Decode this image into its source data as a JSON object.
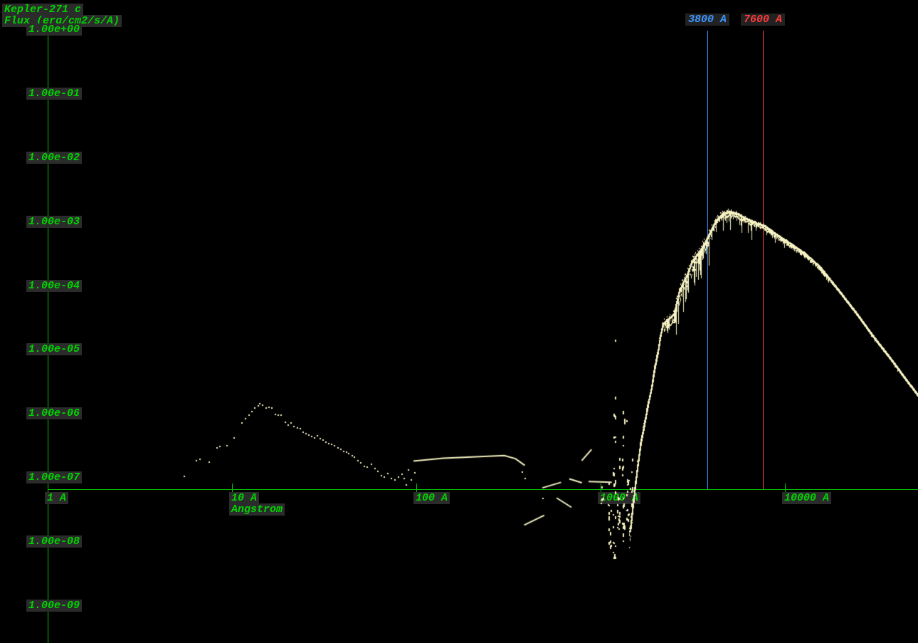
{
  "header": {
    "object_name": "Kepler-271 c",
    "flux_label": "Flux (erg/cm2/s/A)"
  },
  "chart_data": {
    "type": "scatter",
    "title": "Kepler-271 c",
    "xlabel": "Angstrom",
    "ylabel": "Flux (erg/cm2/s/A)",
    "x_scale": "log",
    "y_scale": "log",
    "xlim": [
      1,
      56000
    ],
    "ylim": [
      1e-09,
      1
    ],
    "grid": false,
    "legend": "none",
    "point_color": "#f6f2c2",
    "axis_color": "#00c400",
    "text_color": "#00d400",
    "label_bg": "#2b2b2b",
    "x_ticks": [
      {
        "value": 1,
        "label": "1 A"
      },
      {
        "value": 10,
        "label": "10 A",
        "sub": "Angstrom"
      },
      {
        "value": 100,
        "label": "100 A"
      },
      {
        "value": 1000,
        "label": "1000 A"
      },
      {
        "value": 10000,
        "label": "10000 A"
      }
    ],
    "y_ticks": [
      {
        "exp": 0,
        "label": "1.00e+00"
      },
      {
        "exp": -1,
        "label": "1.00e-01"
      },
      {
        "exp": -2,
        "label": "1.00e-02"
      },
      {
        "exp": -3,
        "label": "1.00e-03"
      },
      {
        "exp": -4,
        "label": "1.00e-04"
      },
      {
        "exp": -5,
        "label": "1.00e-05"
      },
      {
        "exp": -6,
        "label": "1.00e-06"
      },
      {
        "exp": -7,
        "label": "1.00e-07"
      },
      {
        "exp": -8,
        "label": "1.00e-08"
      },
      {
        "exp": -9,
        "label": "1.00e-09"
      }
    ],
    "markers": [
      {
        "wavelength": 3800,
        "label": "3800 A",
        "color": "#3c96ff"
      },
      {
        "wavelength": 7600,
        "label": "7600 A",
        "color": "#ff3a3a"
      }
    ],
    "series": [
      {
        "name": "soft-xray-dotted-bump",
        "style": "dots",
        "points": [
          [
            5.5,
            1.6e-07
          ],
          [
            6.4,
            2.8e-07
          ],
          [
            6.7,
            2.9e-07
          ],
          [
            7.5,
            2.65e-07
          ],
          [
            8.3,
            4.4e-07
          ],
          [
            8.6,
            4.7e-07
          ],
          [
            9.4,
            4.8e-07
          ],
          [
            10.3,
            6.3e-07
          ],
          [
            11.3,
            1.08e-06
          ],
          [
            11.8,
            1.26e-06
          ],
          [
            12.4,
            1.44e-06
          ],
          [
            12.8,
            1.64e-06
          ],
          [
            13.3,
            1.87e-06
          ],
          [
            13.9,
            2e-06
          ],
          [
            14.2,
            2.17e-06
          ],
          [
            14.7,
            2.07e-06
          ],
          [
            15.3,
            1.87e-06
          ],
          [
            15.9,
            1.92e-06
          ],
          [
            16.5,
            1.87e-06
          ],
          [
            17.2,
            1.48e-06
          ],
          [
            17.9,
            1.44e-06
          ],
          [
            18.5,
            1.44e-06
          ],
          [
            19.4,
            1.11e-06
          ],
          [
            20.2,
            1e-06
          ],
          [
            21.0,
            1.08e-06
          ],
          [
            21.7,
            9.5e-07
          ],
          [
            22.7,
            9e-07
          ],
          [
            23.5,
            8.8e-07
          ],
          [
            24.4,
            7.7e-07
          ],
          [
            25.3,
            7.4e-07
          ],
          [
            26.1,
            7e-07
          ],
          [
            27.1,
            6.6e-07
          ],
          [
            28.0,
            6.4e-07
          ],
          [
            29.0,
            6.8e-07
          ],
          [
            30.0,
            6.1e-07
          ],
          [
            31.2,
            5.8e-07
          ],
          [
            32.3,
            5.5e-07
          ],
          [
            33.6,
            5.1e-07
          ],
          [
            34.8,
            5e-07
          ],
          [
            36.0,
            4.8e-07
          ],
          [
            37.7,
            4.4e-07
          ],
          [
            38.8,
            4.2e-07
          ],
          [
            40.3,
            3.9e-07
          ],
          [
            41.9,
            3.8e-07
          ],
          [
            43.1,
            3.6e-07
          ],
          [
            45.0,
            3.3e-07
          ],
          [
            46.3,
            3.2e-07
          ],
          [
            48.3,
            2.8e-07
          ],
          [
            50.1,
            2.6e-07
          ],
          [
            52.3,
            2.3e-07
          ],
          [
            54.2,
            2.2e-07
          ],
          [
            57.0,
            2.45e-07
          ],
          [
            59.5,
            2.1e-07
          ],
          [
            61.6,
            1.9e-07
          ],
          [
            64.5,
            1.63e-07
          ],
          [
            66.9,
            1.55e-07
          ],
          [
            70.0,
            1.76e-07
          ],
          [
            73.2,
            1.48e-07
          ],
          [
            76.4,
            1.39e-07
          ],
          [
            79.8,
            1.55e-07
          ],
          [
            83.7,
            1.71e-07
          ],
          [
            85.9,
            1.48e-07
          ],
          [
            88.4,
            1.18e-07
          ],
          [
            90.8,
            2e-07
          ],
          [
            94.1,
            1.39e-07
          ],
          [
            98.3,
            1.8e-07
          ]
        ]
      },
      {
        "name": "euv-continuum",
        "style": "line",
        "points": [
          [
            96.5,
            2.75e-07
          ],
          [
            140,
            3.05e-07
          ],
          [
            200,
            3.2e-07
          ],
          [
            300,
            3.35e-07
          ],
          [
            345,
            3e-07
          ],
          [
            388,
            2.35e-07
          ]
        ]
      },
      {
        "name": "fuv-fragments",
        "style": "segments",
        "segments": [
          [
            [
              483,
              1.05e-07
            ],
            [
              610,
              1.28e-07
            ]
          ],
          [
            [
              676,
              1.45e-07
            ],
            [
              792,
              1.26e-07
            ]
          ],
          [
            [
              790,
              2.8e-07
            ],
            [
              893,
              4.2e-07
            ]
          ],
          [
            [
              860,
              1.32e-07
            ],
            [
              1150,
              1.28e-07
            ]
          ],
          [
            [
              385,
              2.75e-08
            ],
            [
              495,
              3.9e-08
            ]
          ],
          [
            [
              577,
              7.3e-08
            ],
            [
              695,
              5.2e-08
            ]
          ]
        ]
      },
      {
        "name": "stray-dots",
        "style": "dots",
        "points": [
          [
            377,
            1.85e-07
          ],
          [
            390,
            1.47e-07
          ],
          [
            487,
            7.2e-08
          ]
        ]
      },
      {
        "name": "emission-line-forest",
        "style": "vlines",
        "lines": [
          {
            "wavelength": 1010,
            "flux_max": 2.2e-07,
            "flux_min": 6e-08,
            "dots": 5
          },
          {
            "wavelength": 1110,
            "flux_max": 1.5e-07,
            "flux_min": 1.2e-08,
            "dots": 15
          },
          {
            "wavelength": 1180,
            "flux_max": 0.000175,
            "flux_min": 8e-09,
            "dots": 30
          },
          {
            "wavelength": 1245,
            "flux_max": 2.5e-06,
            "flux_min": 2e-08,
            "dots": 14
          },
          {
            "wavelength": 1325,
            "flux_max": 1.5e-05,
            "flux_min": 1.5e-08,
            "dots": 20
          },
          {
            "wavelength": 1398,
            "flux_max": 3e-06,
            "flux_min": 3e-08,
            "dots": 13
          },
          {
            "wavelength": 1460,
            "flux_max": 8e-07,
            "flux_min": 4e-08,
            "dots": 8
          }
        ]
      },
      {
        "name": "stellar-photosphere-curve",
        "style": "fuzzy",
        "points": [
          [
            1430,
            2.2e-08,
            0.28
          ],
          [
            1505,
            8e-08,
            0.22
          ],
          [
            1570,
            2.3e-07,
            0.12
          ],
          [
            1640,
            5.6e-07,
            0.08
          ],
          [
            1715,
            1.07e-06,
            0.06
          ],
          [
            1790,
            2.1e-06,
            0.06
          ],
          [
            1870,
            3.8e-06,
            0.06
          ],
          [
            1945,
            7.8e-06,
            0.06
          ],
          [
            2035,
            1.5e-05,
            0.07
          ],
          [
            2090,
            2.5e-05,
            0.09
          ],
          [
            2160,
            3.8e-05,
            0.12
          ],
          [
            2320,
            4.6e-05,
            0.13
          ],
          [
            2480,
            5.5e-05,
            0.13
          ],
          [
            2540,
            7.5e-05,
            0.16
          ],
          [
            2640,
            0.00012,
            0.2
          ],
          [
            2760,
            0.000165,
            0.22
          ],
          [
            2930,
            0.00023,
            0.22
          ],
          [
            3100,
            0.00036,
            0.22
          ],
          [
            3500,
            0.00058,
            0.2
          ],
          [
            3840,
            0.00095,
            0.14
          ],
          [
            4200,
            0.0016,
            0.09
          ],
          [
            4560,
            0.00205,
            0.07
          ],
          [
            4970,
            0.0022,
            0.07
          ],
          [
            5440,
            0.00205,
            0.06
          ],
          [
            5930,
            0.00176,
            0.05
          ],
          [
            6800,
            0.00147,
            0.045
          ],
          [
            7600,
            0.00133,
            0.04
          ],
          [
            8300,
            0.00111,
            0.04
          ],
          [
            9400,
            0.00086,
            0.035
          ],
          [
            10700,
            0.00068,
            0.03
          ],
          [
            12800,
            0.000475,
            0.03
          ],
          [
            15300,
            0.0003,
            0.025
          ],
          [
            19200,
            0.000133,
            0.02
          ],
          [
            24100,
            5.7e-05,
            0.02
          ],
          [
            30000,
            2.4e-05,
            0.018
          ],
          [
            37600,
            1.04e-05,
            0.018
          ],
          [
            44900,
            5.2e-06,
            0.015
          ],
          [
            54700,
            2.47e-06,
            0.015
          ]
        ],
        "spikes": [
          {
            "from": 2150,
            "to": 2520,
            "p": 0.22,
            "dex": 0.28
          },
          {
            "from": 2520,
            "to": 4150,
            "p": 0.38,
            "dex": 0.52
          },
          {
            "from": 4150,
            "to": 6600,
            "p": 0.33,
            "dex": 0.3
          },
          {
            "from": 6600,
            "to": 10000,
            "p": 0.12,
            "dex": 0.13
          },
          {
            "from": 10000,
            "to": 56000,
            "p": 0.05,
            "dex": 0.06
          }
        ]
      }
    ]
  }
}
